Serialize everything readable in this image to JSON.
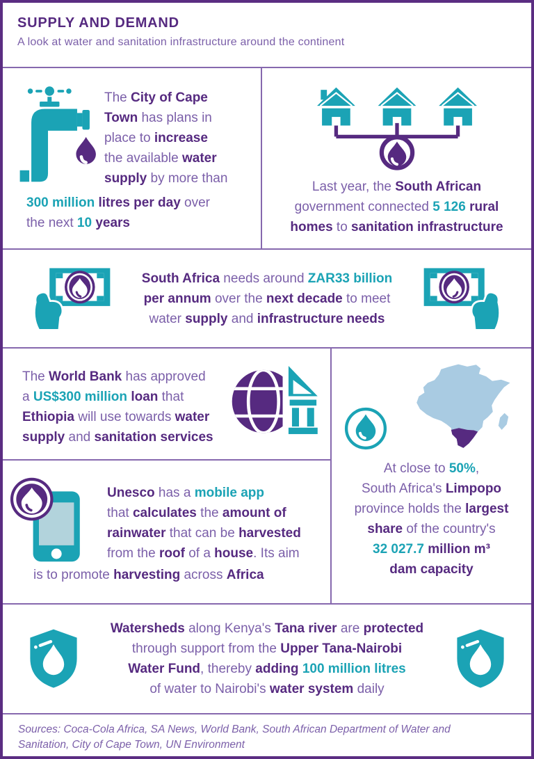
{
  "palette": {
    "teal": "#1BA3B5",
    "purple_dark": "#562A80",
    "purple_mid": "#7B5FA9",
    "border_outer": "#5B2D82",
    "divider": "#8668AE",
    "africa_blue": "#A9CBE2",
    "phone_screen": "#B2D3DC",
    "background": "#FFFFFF"
  },
  "icons": {
    "water_tap": "water-tap-icon",
    "houses": "rural-homes-icon",
    "water_drop_badge": "water-drop-badge-icon",
    "banknote_hand": "money-in-hand-icon",
    "globe_bank": "world-bank-icon",
    "mobile_phone": "mobile-app-icon",
    "africa_map": "africa-map-icon",
    "water_drop_circle": "water-drop-circle-icon",
    "shield_drop": "water-shield-icon"
  },
  "header": {
    "title": "SUPPLY AND DEMAND",
    "subtitle": "A look at water and sanitation infrastructure around the continent"
  },
  "panels": {
    "cape_town": {
      "segments_main": [
        {
          "t": "The ",
          "s": "r"
        },
        {
          "t": "City of Cape\nTown",
          "s": "b"
        },
        {
          "t": " has plans in\nplace to ",
          "s": "r"
        },
        {
          "t": "increase",
          "s": "b"
        },
        {
          "t": "\nthe available ",
          "s": "r"
        },
        {
          "t": "water\nsupply",
          "s": "b"
        },
        {
          "t": " by more than",
          "s": "r"
        }
      ],
      "segments_tail": [
        {
          "t": "300 million",
          "s": "t"
        },
        {
          "t": " ",
          "s": "r"
        },
        {
          "t": "litres per day",
          "s": "b"
        },
        {
          "t": " over\nthe next ",
          "s": "r"
        },
        {
          "t": "10",
          "s": "t"
        },
        {
          "t": " ",
          "s": "r"
        },
        {
          "t": "years",
          "s": "b"
        }
      ]
    },
    "rural_homes": {
      "segments": [
        {
          "t": "Last year, the ",
          "s": "r"
        },
        {
          "t": "South African",
          "s": "b"
        },
        {
          "t": "\ngovernment connected ",
          "s": "r"
        },
        {
          "t": "5 126",
          "s": "t"
        },
        {
          "t": " ",
          "s": "r"
        },
        {
          "t": "rural\nhomes",
          "s": "b"
        },
        {
          "t": " to ",
          "s": "r"
        },
        {
          "t": "sanitation infrastructure",
          "s": "b"
        }
      ]
    },
    "funding": {
      "segments": [
        {
          "t": "South Africa",
          "s": "b"
        },
        {
          "t": " needs around ",
          "s": "r"
        },
        {
          "t": "ZAR33 billion",
          "s": "t"
        },
        {
          "t": "\n",
          "s": "r"
        },
        {
          "t": "per annum",
          "s": "b"
        },
        {
          "t": " over the ",
          "s": "r"
        },
        {
          "t": "next decade",
          "s": "b"
        },
        {
          "t": " to meet\nwater ",
          "s": "r"
        },
        {
          "t": "supply",
          "s": "b"
        },
        {
          "t": " and ",
          "s": "r"
        },
        {
          "t": "infrastructure needs",
          "s": "b"
        }
      ]
    },
    "world_bank": {
      "segments": [
        {
          "t": "The ",
          "s": "r"
        },
        {
          "t": "World Bank",
          "s": "b"
        },
        {
          "t": " has approved\na ",
          "s": "r"
        },
        {
          "t": "US$300 million",
          "s": "t"
        },
        {
          "t": " ",
          "s": "r"
        },
        {
          "t": "loan",
          "s": "b"
        },
        {
          "t": " that\n",
          "s": "r"
        },
        {
          "t": "Ethiopia",
          "s": "b"
        },
        {
          "t": " will use towards ",
          "s": "r"
        },
        {
          "t": "water\nsupply",
          "s": "b"
        },
        {
          "t": " and ",
          "s": "r"
        },
        {
          "t": "sanitation services",
          "s": "b"
        }
      ]
    },
    "unesco_app": {
      "segments_main": [
        {
          "t": "Unesco",
          "s": "b"
        },
        {
          "t": " has a ",
          "s": "r"
        },
        {
          "t": "mobile app",
          "s": "t"
        },
        {
          "t": "\nthat ",
          "s": "r"
        },
        {
          "t": "calculates",
          "s": "b"
        },
        {
          "t": " the ",
          "s": "r"
        },
        {
          "t": "amount of\nrainwater",
          "s": "b"
        },
        {
          "t": " that can be ",
          "s": "r"
        },
        {
          "t": "harvested",
          "s": "b"
        },
        {
          "t": "\nfrom the ",
          "s": "r"
        },
        {
          "t": "roof",
          "s": "b"
        },
        {
          "t": " of a ",
          "s": "r"
        },
        {
          "t": "house",
          "s": "b"
        },
        {
          "t": ". Its aim",
          "s": "r"
        }
      ],
      "segments_tail": [
        {
          "t": "is to promote ",
          "s": "r"
        },
        {
          "t": "harvesting",
          "s": "b"
        },
        {
          "t": " across ",
          "s": "r"
        },
        {
          "t": "Africa",
          "s": "b"
        }
      ]
    },
    "limpopo": {
      "segments": [
        {
          "t": "At close to ",
          "s": "r"
        },
        {
          "t": "50%",
          "s": "t"
        },
        {
          "t": ",\nSouth Africa's ",
          "s": "r"
        },
        {
          "t": "Limpopo",
          "s": "b"
        },
        {
          "t": "\nprovince holds the ",
          "s": "r"
        },
        {
          "t": "largest\nshare",
          "s": "b"
        },
        {
          "t": " of the country's\n",
          "s": "r"
        },
        {
          "t": "32 027.7",
          "s": "t"
        },
        {
          "t": " ",
          "s": "r"
        },
        {
          "t": "million m³\ndam capacity",
          "s": "b"
        }
      ]
    },
    "tana_river": {
      "segments": [
        {
          "t": "Watersheds",
          "s": "b"
        },
        {
          "t": " along Kenya's ",
          "s": "r"
        },
        {
          "t": "Tana river",
          "s": "b"
        },
        {
          "t": " are ",
          "s": "r"
        },
        {
          "t": "protected",
          "s": "b"
        },
        {
          "t": "\nthrough support from the ",
          "s": "r"
        },
        {
          "t": "Upper Tana-Nairobi\nWater Fund",
          "s": "b"
        },
        {
          "t": ", thereby ",
          "s": "r"
        },
        {
          "t": "adding",
          "s": "b"
        },
        {
          "t": " ",
          "s": "r"
        },
        {
          "t": "100 million litres",
          "s": "t"
        },
        {
          "t": "\nof water to Nairobi's ",
          "s": "r"
        },
        {
          "t": "water system",
          "s": "b"
        },
        {
          "t": " daily",
          "s": "r"
        }
      ]
    }
  },
  "footer": {
    "sources": "Sources: Coca-Cola Africa, SA News, World Bank, South African Department of Water and Sanitation, City of Cape Town, UN Environment"
  }
}
